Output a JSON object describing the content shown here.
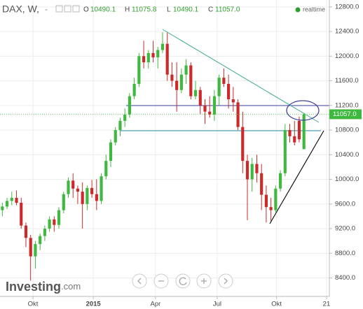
{
  "chart_data": {
    "type": "candlestick",
    "header": {
      "symbol": "DAX, W,",
      "dash": "-",
      "o_key": "O",
      "o": "10490.1",
      "h_key": "H",
      "h": "11075.8",
      "l_key": "L",
      "l": "10490.1",
      "c_key": "C",
      "c": "11057.0",
      "status": "realtime"
    },
    "last_price_label": "11057.0",
    "logo": {
      "brand": "Investing",
      "suffix": ".com"
    },
    "up_color": "#3fb83f",
    "down_color": "#cc2a2a",
    "open": [
      9500,
      9560,
      9650,
      9700,
      9620,
      9250,
      9050,
      8750,
      8950,
      9080,
      9200,
      9350,
      9260,
      9500,
      9760,
      9980,
      9850,
      9800,
      9600,
      9860,
      9760,
      9650,
      10050,
      10300,
      10600,
      10800,
      10950,
      11050,
      11350,
      11550,
      12000,
      11900,
      12050,
      11980,
      12100,
      12200,
      11700,
      11600,
      11450,
      11700,
      11850,
      11350,
      11450,
      11200,
      11100,
      11050,
      11350,
      11650,
      11550,
      11300,
      11250,
      10850,
      10300,
      10000,
      10250,
      10100,
      9750,
      9550,
      9500,
      9850,
      10100,
      10800,
      10700,
      10950,
      10490.1
    ],
    "high": [
      9620,
      9700,
      9800,
      9820,
      9700,
      9300,
      9100,
      9000,
      9120,
      9250,
      9400,
      9400,
      9550,
      9800,
      10030,
      10100,
      9900,
      9950,
      9900,
      9990,
      10000,
      10100,
      10400,
      10650,
      10850,
      11000,
      11150,
      11400,
      11650,
      12050,
      12250,
      12100,
      12250,
      12150,
      12390,
      12380,
      11900,
      11900,
      11800,
      11950,
      11900,
      11600,
      11500,
      11300,
      11350,
      11450,
      11700,
      11800,
      11700,
      11500,
      11300,
      11100,
      10400,
      10350,
      10400,
      10250,
      9900,
      9700,
      9900,
      10150,
      10900,
      10900,
      10950,
      11020,
      11075.8
    ],
    "low": [
      9400,
      9520,
      9580,
      9580,
      9200,
      8900,
      8355,
      8550,
      8850,
      9000,
      9150,
      9150,
      9200,
      9450,
      9700,
      9700,
      9600,
      9200,
      9500,
      9700,
      9500,
      9600,
      10000,
      10200,
      10550,
      10700,
      10850,
      11000,
      11300,
      11500,
      11800,
      11800,
      11900,
      11800,
      12050,
      11600,
      11500,
      11100,
      11400,
      11550,
      11300,
      11300,
      11050,
      10900,
      11000,
      10950,
      11200,
      11500,
      11150,
      11100,
      10800,
      10100,
      9338,
      9800,
      9950,
      9500,
      9300,
      9325,
      9450,
      9800,
      10050,
      10600,
      10550,
      10600,
      10490.1
    ],
    "close": [
      9560,
      9650,
      9700,
      9620,
      9250,
      9050,
      8750,
      8950,
      9080,
      9200,
      9350,
      9260,
      9500,
      9760,
      9980,
      9850,
      9800,
      9600,
      9860,
      9760,
      9650,
      10050,
      10300,
      10600,
      10800,
      10950,
      11050,
      11350,
      11550,
      12000,
      11900,
      12050,
      11980,
      12100,
      12200,
      11700,
      11600,
      11450,
      11700,
      11850,
      11350,
      11450,
      11200,
      11100,
      11050,
      11350,
      11650,
      11550,
      11300,
      11250,
      10850,
      10300,
      10000,
      10250,
      10100,
      9750,
      9550,
      9500,
      9850,
      10100,
      10800,
      10700,
      10600,
      10650,
      11057
    ],
    "xlim": [
      -0.5,
      69.4
    ],
    "xticks": [
      {
        "value": 6.5,
        "label": "Okt"
      },
      {
        "value": 19.3,
        "label": "2015"
      },
      {
        "value": 32.5,
        "label": "Apr"
      },
      {
        "value": 45.6,
        "label": "Jul"
      },
      {
        "value": 58.2,
        "label": "Okt"
      },
      {
        "value": 68.8,
        "label": "21"
      }
    ],
    "ylim": [
      8100,
      12900
    ],
    "yticks": [
      {
        "value": 8400,
        "label": "8400.0"
      },
      {
        "value": 8800,
        "label": "8800.0"
      },
      {
        "value": 9200,
        "label": "9200.0"
      },
      {
        "value": 9600,
        "label": "9600.0"
      },
      {
        "value": 10000,
        "label": "10000.0"
      },
      {
        "value": 10400,
        "label": "10400.0"
      },
      {
        "value": 10800,
        "label": "10800.0"
      },
      {
        "value": 11200,
        "label": "11200.0"
      },
      {
        "value": 11600,
        "label": "11600.0"
      },
      {
        "value": 12000,
        "label": "12000.0"
      },
      {
        "value": 12400,
        "label": "12400.0"
      },
      {
        "value": 12800,
        "label": "12800.0"
      }
    ],
    "grid": true
  }
}
